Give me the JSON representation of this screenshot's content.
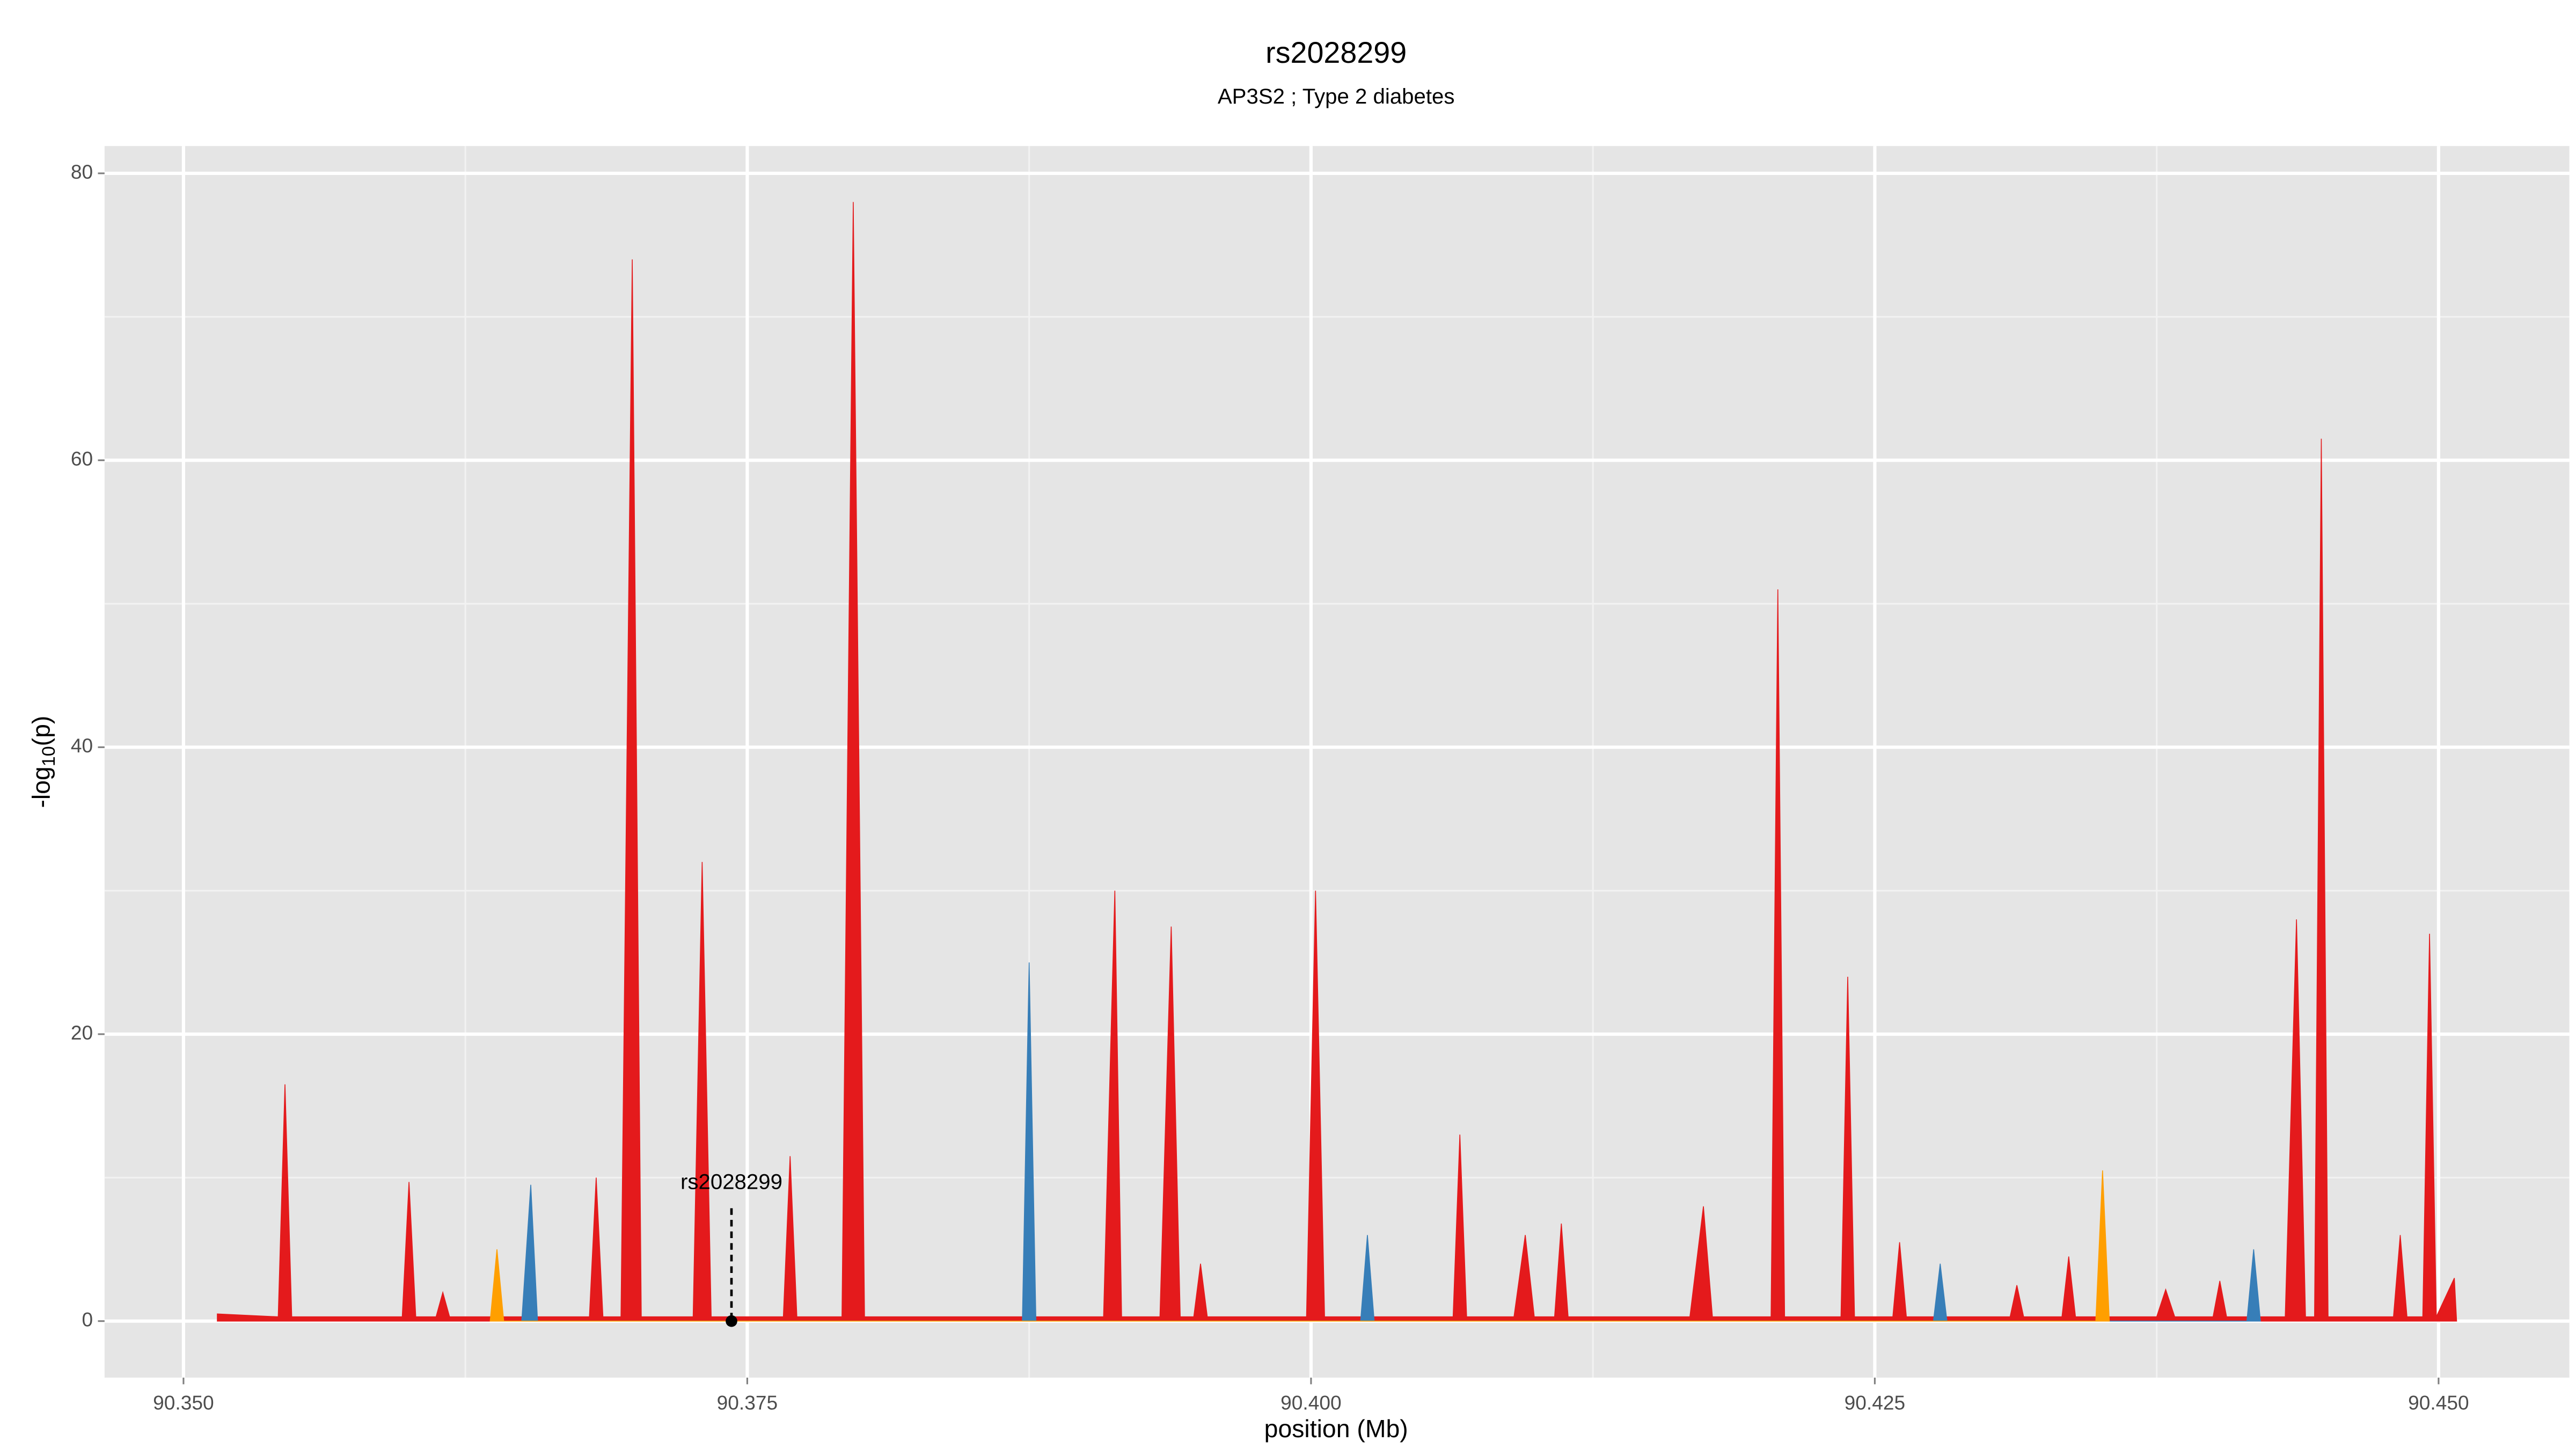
{
  "chart_data": {
    "type": "area",
    "title": "rs2028299",
    "subtitle": "AP3S2 ; Type 2 diabetes",
    "x_label": "position (Mb)",
    "y_label": "-log10(p)",
    "xlim": [
      90.3465,
      90.4558
    ],
    "ylim": [
      -3.94,
      81.9
    ],
    "xticks": [
      {
        "value": 90.35,
        "label": "90.350"
      },
      90.375,
      {
        "value": 90.4,
        "label": "90.400"
      },
      90.425,
      {
        "value": 90.45,
        "label": "90.450"
      }
    ],
    "yticks": [
      0,
      20,
      40,
      60,
      80
    ],
    "grid": true,
    "series": [
      {
        "color": "#e41a1c",
        "x": [
          90.3515,
          90.3542,
          90.3545,
          90.3548,
          90.3597,
          90.36,
          90.3603,
          90.3612,
          90.3615,
          90.3618,
          90.368,
          90.3683,
          90.3686,
          90.3694,
          90.3699,
          90.3703,
          90.3726,
          90.373,
          90.3734,
          90.3766,
          90.3769,
          90.3772,
          90.3792,
          90.3797,
          90.3802,
          90.3908,
          90.3913,
          90.3916,
          90.3933,
          90.3938,
          90.3942,
          90.3948,
          90.3951,
          90.3954,
          90.3998,
          90.4002,
          90.4006,
          90.4063,
          90.4066,
          90.4069,
          90.409,
          90.4095,
          90.4099,
          90.4108,
          90.4111,
          90.4114,
          90.4168,
          90.4174,
          90.4178,
          90.4204,
          90.4207,
          90.421,
          90.4235,
          90.4238,
          90.4241,
          90.4258,
          90.4261,
          90.4264,
          90.431,
          90.4313,
          90.4316,
          90.4333,
          90.4336,
          90.4339,
          90.4375,
          90.4379,
          90.4383,
          90.44,
          90.4403,
          90.4406,
          90.4432,
          90.4437,
          90.4441,
          90.4445,
          90.4448,
          90.4451,
          90.448,
          90.4483,
          90.4486,
          90.4493,
          90.4496,
          90.4499,
          90.4507,
          90.4508
        ],
        "values": [
          0.5,
          0.3,
          16.5,
          0.3,
          0.3,
          9.7,
          0.3,
          0.3,
          2,
          0.3,
          0.3,
          10,
          0.3,
          0.3,
          74,
          0.3,
          0.3,
          32,
          0.3,
          0.3,
          11.5,
          0.3,
          0.3,
          78,
          0.3,
          0.3,
          30,
          0.3,
          0.3,
          27.5,
          0.3,
          0.3,
          4,
          0.3,
          0.3,
          30,
          0.3,
          0.3,
          13,
          0.3,
          0.3,
          6,
          0.3,
          0.3,
          6.8,
          0.3,
          0.3,
          8,
          0.3,
          0.3,
          51,
          0.3,
          0.3,
          24,
          0.3,
          0.3,
          5.5,
          0.3,
          0.3,
          2.5,
          0.3,
          0.3,
          4.5,
          0.3,
          0.3,
          2.2,
          0.3,
          0.3,
          2.8,
          0.3,
          0.3,
          28,
          0.3,
          0.3,
          61.5,
          0.3,
          0.3,
          6,
          0.3,
          0.3,
          27,
          0.3,
          3,
          0
        ]
      },
      {
        "color": "#377eb8",
        "x": [
          90.365,
          90.3654,
          90.3657,
          90.3872,
          90.3875,
          90.3878,
          90.4022,
          90.4025,
          90.4028,
          90.4276,
          90.4279,
          90.4282,
          90.4415,
          90.4418,
          90.4421
        ],
        "values": [
          0,
          9.5,
          0,
          0,
          25,
          0,
          0,
          6,
          0,
          0,
          4,
          0,
          0,
          5,
          0
        ]
      },
      {
        "color": "#ff9f00",
        "x": [
          90.3636,
          90.3639,
          90.3642,
          90.4348,
          90.4351,
          90.4354
        ],
        "values": [
          0,
          5,
          0,
          0,
          10.5,
          0
        ]
      }
    ],
    "annotations": [
      {
        "text": "rs2028299",
        "x": 90.3743,
        "y": 0
      }
    ]
  }
}
